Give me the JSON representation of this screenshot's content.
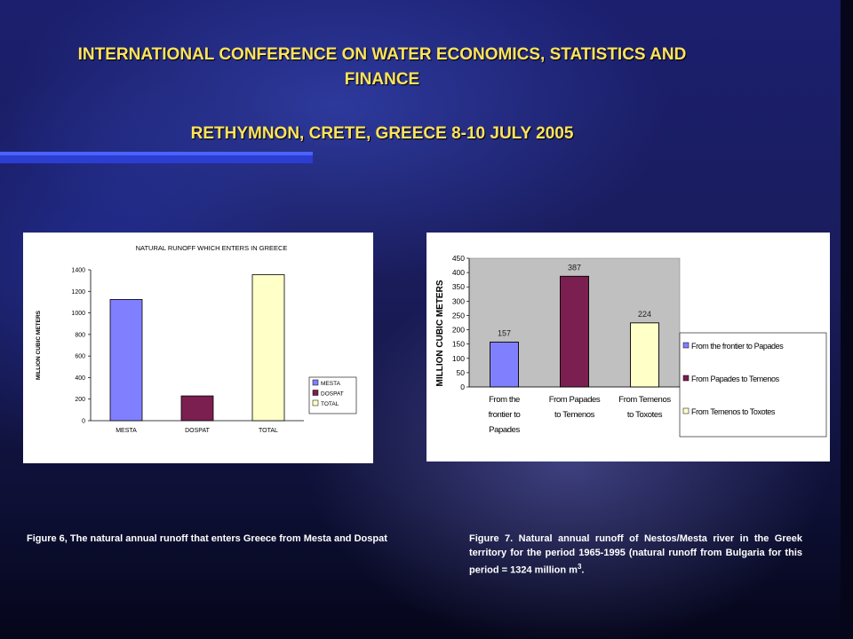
{
  "header": {
    "line1": "INTERNATIONAL CONFERENCE ON WATER ECONOMICS, STATISTICS AND",
    "line2": "FINANCE",
    "line3": "RETHYMNON, CRETE, GREECE 8-10 JULY 2005"
  },
  "chart_data": [
    {
      "type": "bar",
      "title": "NATURAL  RUNOFF  WHICH ENTERS IN  GREECE",
      "xlabel": "",
      "ylabel": "MILLION CUBIC METERS",
      "ylim": [
        0,
        1400
      ],
      "yticks": [
        0,
        200,
        400,
        600,
        800,
        1000,
        1200,
        1400
      ],
      "categories": [
        "MESTA",
        "DOSPAT",
        "TOTAL"
      ],
      "values": [
        1125,
        230,
        1355
      ],
      "colors": [
        "#8080ff",
        "#7a1f4f",
        "#ffffc8"
      ],
      "legend": [
        "MESTA",
        "DOSPAT",
        "TOTAL"
      ],
      "legend_position": "right",
      "plot_bg": "#ffffff"
    },
    {
      "type": "bar",
      "title": "",
      "xlabel": "",
      "ylabel": "MILLION CUBIC METERS",
      "ylim": [
        0,
        450
      ],
      "yticks": [
        0,
        50,
        100,
        150,
        200,
        250,
        300,
        350,
        400,
        450
      ],
      "categories": [
        [
          "From the",
          "frontier  to",
          "Papades"
        ],
        [
          "From Papades",
          "to Temenos"
        ],
        [
          "From Temenos",
          "to Toxotes"
        ]
      ],
      "values": [
        157,
        387,
        224
      ],
      "data_labels": [
        "157",
        "387",
        "224"
      ],
      "colors": [
        "#8080ff",
        "#7a1f4f",
        "#ffffc8"
      ],
      "legend": [
        "From the  frontier  to Papades",
        "From Papades to Temenos",
        "From Temenos to Toxotes"
      ],
      "legend_position": "right",
      "plot_bg": "#c0c0c0"
    }
  ],
  "captions": {
    "fig6": "Figure 6, The natural annual runoff  that enters Greece from Mesta and Dospat",
    "fig7_main": "Figure 7.  Natural annual runoff of Nestos/Mesta  river in the Greek territory for the period 1965-1995 (natural runoff from Bulgaria for this period = 1324 million m",
    "fig7_sup": "3",
    "fig7_end": "."
  }
}
